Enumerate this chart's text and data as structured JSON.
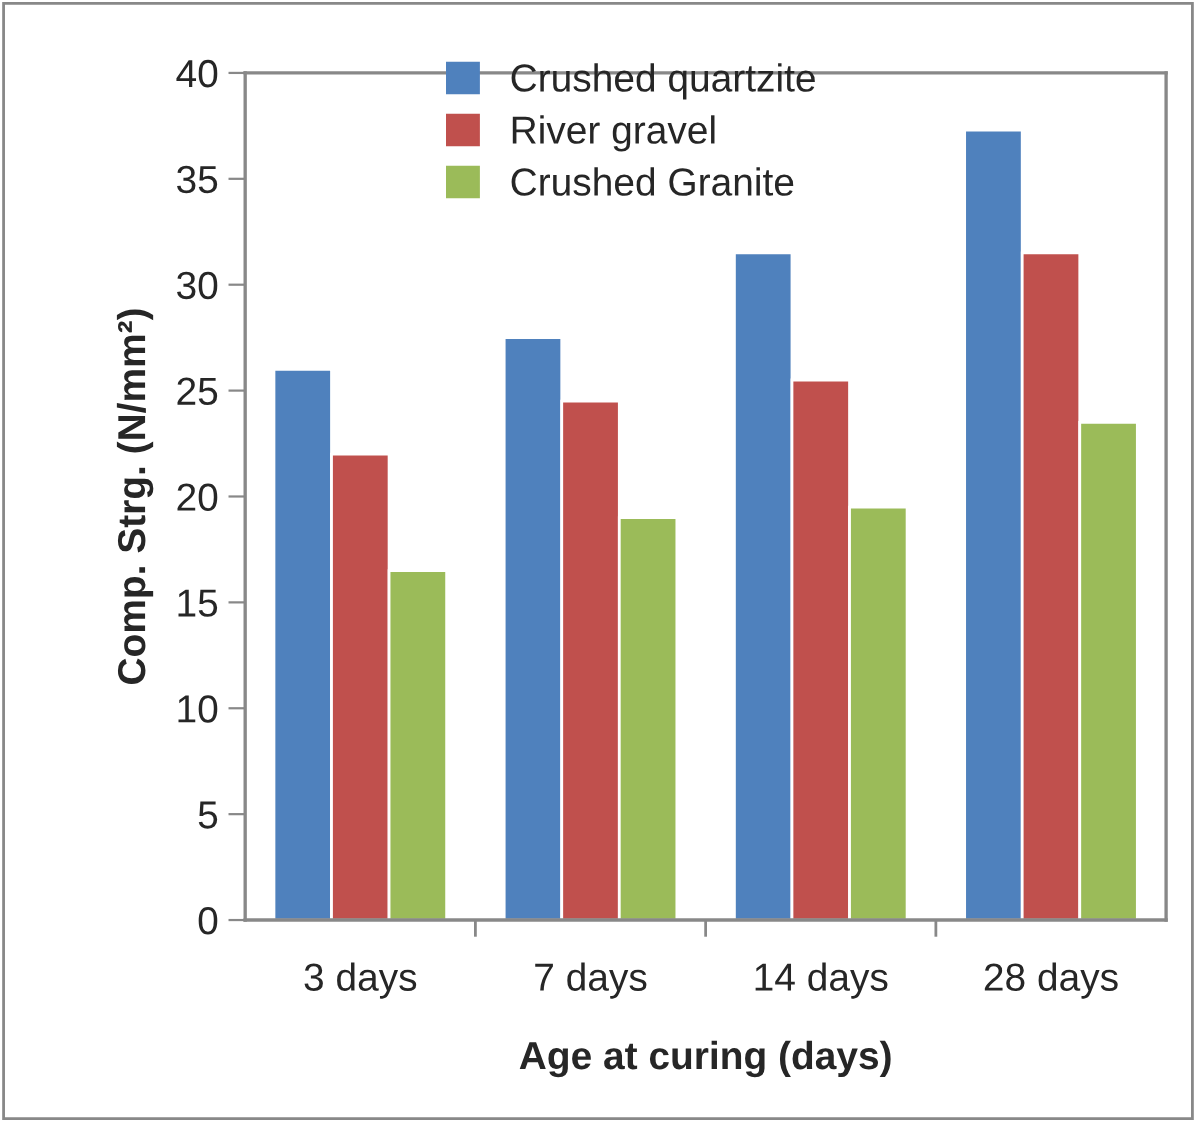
{
  "chart_data": {
    "type": "bar",
    "xlabel": "Age at curing (days)",
    "ylabel": "Comp. Strg. (N/mm²)",
    "categories": [
      "3 days",
      "7 days",
      "14 days",
      "28 days"
    ],
    "series": [
      {
        "name": "Crushed quartzite",
        "color": "#4f81bd",
        "values": [
          26,
          27.5,
          31.5,
          37.3
        ]
      },
      {
        "name": "River gravel",
        "color": "#c0504d",
        "values": [
          22,
          24.5,
          25.5,
          31.5
        ]
      },
      {
        "name": "Crushed Granite",
        "color": "#9bbb59",
        "values": [
          16.5,
          19,
          19.5,
          23.5
        ]
      }
    ],
    "ylim": [
      0,
      40
    ],
    "yticks": [
      0,
      5,
      10,
      15,
      20,
      25,
      30,
      35,
      40
    ],
    "grid": false,
    "legend": "top"
  }
}
